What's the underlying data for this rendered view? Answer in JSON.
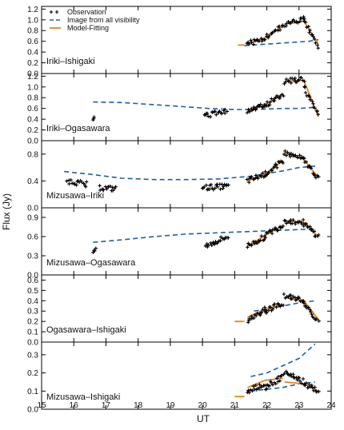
{
  "chart_data": {
    "type": "scatter",
    "xlabel": "UT",
    "ylabel": "Flux (Jy)",
    "xlim": [
      15,
      24
    ],
    "x_ticks": [
      "15",
      "16",
      "17",
      "18",
      "19",
      "20",
      "21",
      "22",
      "23",
      "24"
    ],
    "legend": {
      "placement": "top-left of first panel",
      "entries": [
        {
          "key": "obs",
          "label": "Observation",
          "marker": "plus",
          "color": "#000000"
        },
        {
          "key": "image",
          "label": "Image from all visibility",
          "style": "dashed",
          "color": "#1f5fa8"
        },
        {
          "key": "model",
          "label": "Model-Fitting",
          "style": "solid",
          "color": "#e8821e"
        }
      ]
    },
    "panels": [
      {
        "label": "Iriki–Ishigaki",
        "ylim": [
          0,
          1.25
        ],
        "y_ticks": [
          "0.0",
          "0.2",
          "0.4",
          "0.6",
          "0.8",
          "1.0",
          "1.2"
        ],
        "obs_segments": [
          [
            21.4,
            21.95,
            0.55,
            0.66
          ],
          [
            21.95,
            22.5,
            0.66,
            0.88
          ],
          [
            22.55,
            23.15,
            0.92,
            1.02
          ],
          [
            23.15,
            23.6,
            1.0,
            0.5
          ]
        ],
        "image_curve": [
          [
            21.3,
            0.52
          ],
          [
            21.8,
            0.54
          ],
          [
            22.3,
            0.56
          ],
          [
            22.8,
            0.58
          ],
          [
            23.3,
            0.6
          ],
          [
            23.6,
            0.63
          ]
        ],
        "model_segments": [
          [
            [
              21.1,
              0.53
            ],
            [
              21.3,
              0.53
            ]
          ],
          [
            [
              21.4,
              0.55
            ],
            [
              21.95,
              0.66
            ],
            [
              22.5,
              0.88
            ]
          ],
          [
            [
              22.55,
              0.92
            ],
            [
              23.15,
              0.97
            ],
            [
              23.6,
              0.55
            ]
          ]
        ]
      },
      {
        "label": "Iriki–Ogasawara",
        "ylim": [
          0,
          1.25
        ],
        "y_ticks": [
          "0.0",
          "0.2",
          "0.4",
          "0.6",
          "0.8",
          "1.0",
          "1.2"
        ],
        "obs_segments": [
          [
            16.6,
            16.65,
            0.38,
            0.4
          ],
          [
            20.05,
            20.75,
            0.45,
            0.55
          ],
          [
            21.4,
            21.95,
            0.55,
            0.66
          ],
          [
            21.95,
            22.5,
            0.66,
            0.88
          ],
          [
            22.55,
            23.15,
            1.1,
            1.15
          ],
          [
            23.15,
            23.6,
            1.0,
            0.5
          ]
        ],
        "image_curve": [
          [
            16.6,
            0.72
          ],
          [
            17.5,
            0.71
          ],
          [
            18.5,
            0.67
          ],
          [
            19.5,
            0.63
          ],
          [
            20.2,
            0.6
          ],
          [
            21.0,
            0.58
          ],
          [
            21.5,
            0.58
          ],
          [
            22.5,
            0.6
          ],
          [
            23.0,
            0.6
          ],
          [
            23.5,
            0.62
          ]
        ],
        "model_segments": [
          [
            [
              21.4,
              0.55
            ],
            [
              21.95,
              0.66
            ],
            [
              22.5,
              0.88
            ]
          ],
          [
            [
              22.55,
              1.1
            ],
            [
              23.15,
              1.12
            ],
            [
              23.6,
              0.45
            ]
          ]
        ]
      },
      {
        "label": "Mizusawa–Iriki",
        "ylim": [
          0,
          1.0
        ],
        "y_ticks": [
          "0.0",
          "0.4",
          "0.8"
        ],
        "obs_segments": [
          [
            15.8,
            16.4,
            0.4,
            0.35
          ],
          [
            16.8,
            17.3,
            0.3,
            0.28
          ],
          [
            20.0,
            20.8,
            0.3,
            0.32
          ],
          [
            21.4,
            21.95,
            0.4,
            0.5
          ],
          [
            21.95,
            22.5,
            0.5,
            0.7
          ],
          [
            22.55,
            23.15,
            0.82,
            0.72
          ],
          [
            23.15,
            23.6,
            0.7,
            0.45
          ]
        ],
        "image_curve": [
          [
            15.7,
            0.54
          ],
          [
            16.5,
            0.5
          ],
          [
            17.5,
            0.44
          ],
          [
            18.5,
            0.42
          ],
          [
            19.5,
            0.42
          ],
          [
            20.5,
            0.43
          ],
          [
            21.5,
            0.47
          ],
          [
            22.5,
            0.55
          ],
          [
            23.0,
            0.6
          ],
          [
            23.5,
            0.62
          ]
        ],
        "model_segments": [
          [
            [
              21.4,
              0.4
            ],
            [
              21.95,
              0.5
            ],
            [
              22.5,
              0.7
            ]
          ],
          [
            [
              22.55,
              0.82
            ],
            [
              23.15,
              0.72
            ],
            [
              23.6,
              0.45
            ]
          ]
        ]
      },
      {
        "label": "Mizusawa–Ogasawara",
        "ylim": [
          0,
          1.05
        ],
        "y_ticks": [
          "0.0",
          "0.3",
          "0.6",
          "0.9"
        ],
        "obs_segments": [
          [
            16.6,
            16.7,
            0.36,
            0.4
          ],
          [
            20.1,
            20.8,
            0.45,
            0.6
          ],
          [
            21.4,
            21.95,
            0.45,
            0.6
          ],
          [
            21.95,
            22.5,
            0.62,
            0.78
          ],
          [
            22.55,
            23.15,
            0.85,
            0.82
          ],
          [
            23.15,
            23.6,
            0.8,
            0.6
          ]
        ],
        "image_curve": [
          [
            16.6,
            0.51
          ],
          [
            17.5,
            0.55
          ],
          [
            18.5,
            0.6
          ],
          [
            19.5,
            0.64
          ],
          [
            20.5,
            0.66
          ],
          [
            21.5,
            0.68
          ],
          [
            22.5,
            0.7
          ],
          [
            23.0,
            0.71
          ],
          [
            23.5,
            0.72
          ]
        ],
        "model_segments": [
          [
            [
              21.4,
              0.45
            ],
            [
              21.95,
              0.62
            ],
            [
              22.5,
              0.78
            ]
          ],
          [
            [
              22.55,
              0.85
            ],
            [
              23.15,
              0.82
            ],
            [
              23.6,
              0.6
            ]
          ]
        ]
      },
      {
        "label": "Ogasawara–Ishigaki",
        "ylim": [
          0,
          0.65
        ],
        "y_ticks": [
          "0.0",
          "0.1",
          "0.2",
          "0.3",
          "0.4",
          "0.5",
          "0.6"
        ],
        "obs_segments": [
          [
            21.4,
            21.95,
            0.2,
            0.32
          ],
          [
            21.95,
            22.5,
            0.3,
            0.38
          ],
          [
            22.55,
            23.15,
            0.45,
            0.4
          ],
          [
            23.15,
            23.6,
            0.38,
            0.2
          ]
        ],
        "image_curve": [
          [
            21.6,
            0.3
          ],
          [
            22.0,
            0.32
          ],
          [
            22.5,
            0.35
          ],
          [
            23.0,
            0.38
          ],
          [
            23.5,
            0.4
          ]
        ],
        "model_segments": [
          [
            [
              21.0,
              0.2
            ],
            [
              21.3,
              0.2
            ]
          ],
          [
            [
              21.4,
              0.24
            ],
            [
              21.95,
              0.32
            ],
            [
              22.5,
              0.36
            ]
          ],
          [
            [
              22.55,
              0.43
            ],
            [
              23.15,
              0.4
            ],
            [
              23.6,
              0.22
            ]
          ]
        ]
      },
      {
        "label": "Mizusawa–Ishigaki",
        "ylim": [
          0,
          0.37
        ],
        "y_ticks": [
          "0.0",
          "0.1",
          "0.2",
          "0.3"
        ],
        "obs_segments": [
          [
            21.4,
            21.95,
            0.1,
            0.14
          ],
          [
            21.95,
            22.5,
            0.12,
            0.18
          ],
          [
            22.55,
            23.15,
            0.2,
            0.15
          ],
          [
            23.15,
            23.6,
            0.14,
            0.1
          ]
        ],
        "image_curve": [
          [
            21.5,
            0.18
          ],
          [
            22.0,
            0.2
          ],
          [
            22.5,
            0.24
          ],
          [
            23.0,
            0.28
          ],
          [
            23.5,
            0.36
          ]
        ],
        "image_curve_2": [
          [
            21.5,
            0.1
          ],
          [
            22.0,
            0.11
          ],
          [
            22.5,
            0.12
          ],
          [
            23.0,
            0.14
          ],
          [
            23.5,
            0.15
          ]
        ],
        "model_segments": [
          [
            [
              21.0,
              0.07
            ],
            [
              21.3,
              0.07
            ]
          ],
          [
            [
              21.4,
              0.12
            ],
            [
              21.95,
              0.16
            ],
            [
              22.5,
              0.17
            ]
          ],
          [
            [
              22.55,
              0.15
            ],
            [
              23.15,
              0.14
            ],
            [
              23.6,
              0.1
            ]
          ]
        ]
      }
    ]
  }
}
